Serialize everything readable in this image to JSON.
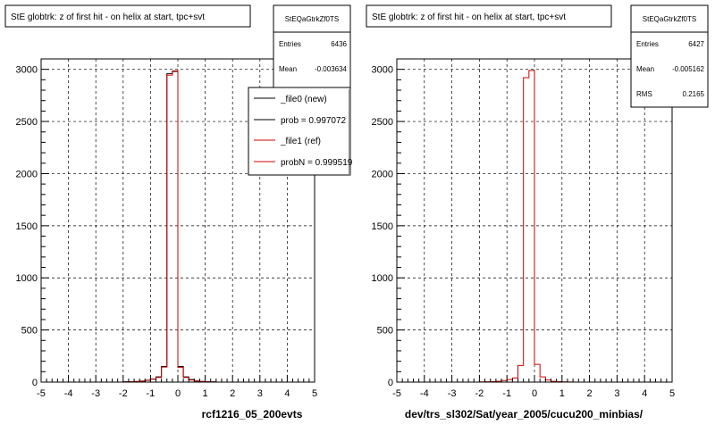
{
  "footer_text": "",
  "chart_data": [
    {
      "type": "bar",
      "panel_id": "left",
      "title": "StE globtrk: z of first hit - on helix at start, tpc+svt",
      "xlabel": "rcf1216_05_200evts",
      "ylabel": "",
      "xlim": [
        -5,
        5
      ],
      "ylim": [
        0,
        3100
      ],
      "x_ticks": [
        -5,
        -4,
        -3,
        -2,
        -1,
        0,
        1,
        2,
        3,
        4,
        5
      ],
      "y_ticks": [
        0,
        500,
        1000,
        1500,
        2000,
        2500,
        3000
      ],
      "grid": true,
      "stats": {
        "name": "StEQaGtrkZf0TS",
        "rows": [
          {
            "label": "Entries",
            "value": "6436"
          },
          {
            "label": "Mean",
            "value": "-0.003634"
          }
        ]
      },
      "legend": {
        "placement": "top-right",
        "entries": [
          {
            "label": "_file0 (new)",
            "color": "#000000"
          },
          {
            "label": "prob = 0.997072",
            "color": "#000000"
          },
          {
            "label": "_file1 (ref)",
            "color": "#cc0000"
          },
          {
            "label": "probN = 0.999519",
            "color": "#cc0000"
          }
        ]
      },
      "bin_edges": [
        -5.0,
        -4.8,
        -4.6,
        -4.4,
        -4.2,
        -4.0,
        -3.8,
        -3.6,
        -3.4,
        -3.2,
        -3.0,
        -2.8,
        -2.6,
        -2.4,
        -2.2,
        -2.0,
        -1.8,
        -1.6,
        -1.4,
        -1.2,
        -1.0,
        -0.8,
        -0.6,
        -0.4,
        -0.2,
        0.0,
        0.2,
        0.4,
        0.6,
        0.8,
        1.0,
        1.2,
        1.4,
        1.6,
        1.8,
        2.0,
        2.2,
        2.4,
        2.6,
        2.8,
        3.0,
        3.2,
        3.4,
        3.6,
        3.8,
        4.0,
        4.2,
        4.4,
        4.6,
        4.8,
        5.0
      ],
      "series": [
        {
          "name": "_file0 (new)",
          "color": "#000000",
          "values": [
            0,
            0,
            0,
            0,
            0,
            0,
            0,
            0,
            0,
            0,
            0,
            0,
            0,
            0,
            0,
            3,
            4,
            5,
            10,
            18,
            30,
            50,
            150,
            2960,
            2980,
            150,
            50,
            25,
            12,
            6,
            4,
            2,
            0,
            0,
            0,
            0,
            0,
            0,
            0,
            0,
            0,
            0,
            0,
            0,
            0,
            0,
            0,
            0,
            0,
            0
          ]
        },
        {
          "name": "_file1 (ref)",
          "color": "#cc0000",
          "values": [
            0,
            0,
            0,
            0,
            0,
            0,
            0,
            0,
            0,
            0,
            0,
            0,
            0,
            0,
            0,
            2,
            4,
            6,
            10,
            16,
            28,
            45,
            145,
            2945,
            2985,
            140,
            45,
            20,
            10,
            5,
            3,
            2,
            0,
            0,
            0,
            0,
            0,
            0,
            0,
            0,
            0,
            0,
            0,
            0,
            0,
            0,
            0,
            0,
            0,
            0
          ]
        }
      ]
    },
    {
      "type": "bar",
      "panel_id": "right",
      "title": "StE globtrk: z of first hit - on helix at start, tpc+svt",
      "xlabel": "dev/trs_sl302/Sat/year_2005/cucu200_minbias/",
      "ylabel": "",
      "xlim": [
        -5,
        5
      ],
      "ylim": [
        0,
        3100
      ],
      "x_ticks": [
        -5,
        -4,
        -3,
        -2,
        -1,
        0,
        1,
        2,
        3,
        4,
        5
      ],
      "y_ticks": [
        0,
        500,
        1000,
        1500,
        2000,
        2500,
        3000
      ],
      "grid": true,
      "stats": {
        "name": "StEQaGtrkZf0TS",
        "rows": [
          {
            "label": "Entries",
            "value": "6427"
          },
          {
            "label": "Mean",
            "value": "-0.005162"
          },
          {
            "label": "RMS",
            "value": "0.2165"
          }
        ]
      },
      "bin_edges": [
        -5.0,
        -4.8,
        -4.6,
        -4.4,
        -4.2,
        -4.0,
        -3.8,
        -3.6,
        -3.4,
        -3.2,
        -3.0,
        -2.8,
        -2.6,
        -2.4,
        -2.2,
        -2.0,
        -1.8,
        -1.6,
        -1.4,
        -1.2,
        -1.0,
        -0.8,
        -0.6,
        -0.4,
        -0.2,
        0.0,
        0.2,
        0.4,
        0.6,
        0.8,
        1.0,
        1.2,
        1.4,
        1.6,
        1.8,
        2.0,
        2.2,
        2.4,
        2.6,
        2.8,
        3.0,
        3.2,
        3.4,
        3.6,
        3.8,
        4.0,
        4.2,
        4.4,
        4.6,
        4.8,
        5.0
      ],
      "series": [
        {
          "name": "",
          "color": "#cc0000",
          "values": [
            0,
            0,
            0,
            0,
            0,
            0,
            0,
            0,
            0,
            0,
            0,
            0,
            0,
            0,
            0,
            2,
            3,
            5,
            8,
            15,
            25,
            40,
            160,
            2920,
            2990,
            170,
            50,
            20,
            8,
            4,
            2,
            1,
            0,
            0,
            0,
            0,
            0,
            0,
            0,
            0,
            0,
            0,
            0,
            0,
            0,
            0,
            0,
            0,
            0,
            0
          ]
        }
      ]
    }
  ]
}
